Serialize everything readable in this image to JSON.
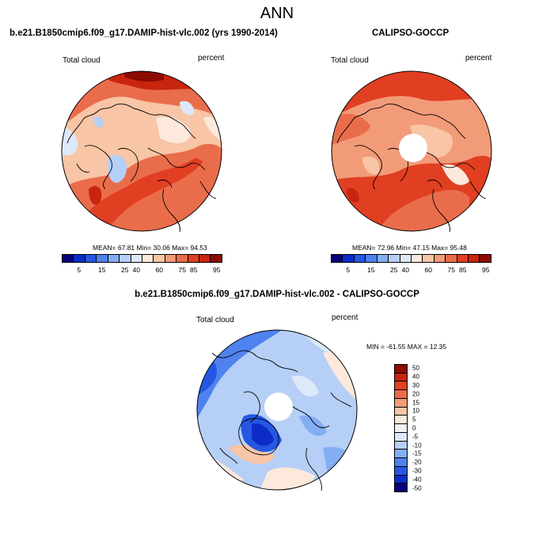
{
  "title": "ANN",
  "panels": [
    {
      "title": "b.e21.B1850cmip6.f09_g17.DAMIP-hist-vlc.002 (yrs 1990-2014)",
      "left_label": "Total cloud",
      "right_label": "percent",
      "stats": "MEAN=  67.81  Min=  30.06  Max=  94.53"
    },
    {
      "title": "CALIPSO-GOCCP",
      "left_label": "Total cloud",
      "right_label": "percent",
      "stats": "MEAN=  72.96  Min=  47.15  Max=  95.48"
    },
    {
      "title": "b.e21.B1850cmip6.f09_g17.DAMIP-hist-vlc.002 - CALIPSO-GOCCP",
      "left_label": "Total cloud",
      "right_label": "percent",
      "stats": "MIN = -61.55 MAX =  12.35"
    }
  ],
  "abs_colorbar": {
    "colors": [
      "#08007a",
      "#0c2cc8",
      "#2557e3",
      "#4f82ee",
      "#84aef4",
      "#b6cff7",
      "#dde8f8",
      "#fce9dc",
      "#f8c5a6",
      "#f29b78",
      "#ea6d4b",
      "#e13f22",
      "#c9240e",
      "#8c0b03"
    ],
    "ticks": [
      "5",
      "15",
      "25",
      "40",
      "60",
      "75",
      "85",
      "95"
    ]
  },
  "diff_colorbar": {
    "colors": [
      "#8c0b03",
      "#c9240e",
      "#e13f22",
      "#ea6d4b",
      "#f29b78",
      "#f8c5a6",
      "#fce9dc",
      "#f2f2f2",
      "#dde8f8",
      "#b6cff7",
      "#84aef4",
      "#4f82ee",
      "#2557e3",
      "#0c2cc8",
      "#08007a"
    ],
    "ticks": [
      "50",
      "40",
      "30",
      "20",
      "15",
      "10",
      "5",
      "0",
      "-5",
      "-10",
      "-15",
      "-20",
      "-30",
      "-40",
      "-50"
    ]
  }
}
